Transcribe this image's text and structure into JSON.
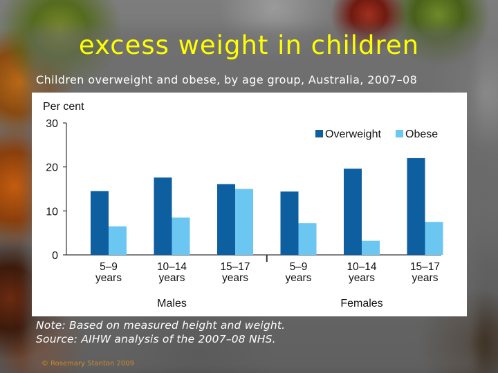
{
  "slide": {
    "title": "excess weight in children",
    "subtitle": "Children overweight and obese, by age group, Australia, 2007–08",
    "note_line1": "Note: Based on measured height and weight.",
    "note_line2": "Source: AIHW analysis of the 2007–08 NHS.",
    "copyright": "© Rosemary Stanton 2009"
  },
  "colors": {
    "title": "#ffff00",
    "overweight": "#0d5fa0",
    "obese": "#6cc6f2"
  },
  "chart_data": {
    "type": "bar",
    "ylabel": "Per cent",
    "ylim": [
      0,
      30
    ],
    "yticks": [
      0,
      10,
      20,
      30
    ],
    "grid": false,
    "legend": "top-right",
    "categories": [
      "5–9 years",
      "10–14 years",
      "15–17 years",
      "5–9 years",
      "10–14 years",
      "15–17 years"
    ],
    "category_lines": [
      [
        "5–9",
        "years"
      ],
      [
        "10–14",
        "years"
      ],
      [
        "15–17",
        "years"
      ],
      [
        "5–9",
        "years"
      ],
      [
        "10–14",
        "years"
      ],
      [
        "15–17",
        "years"
      ]
    ],
    "groups": [
      {
        "label": "Males",
        "categories": [
          0,
          1,
          2
        ]
      },
      {
        "label": "Females",
        "categories": [
          3,
          4,
          5
        ]
      }
    ],
    "series": [
      {
        "name": "Overweight",
        "color": "#0d5fa0",
        "values": [
          14.5,
          17.6,
          16.1,
          14.4,
          19.6,
          22.0
        ]
      },
      {
        "name": "Obese",
        "color": "#6cc6f2",
        "values": [
          6.5,
          8.5,
          15.0,
          7.2,
          3.2,
          7.5
        ]
      }
    ]
  }
}
